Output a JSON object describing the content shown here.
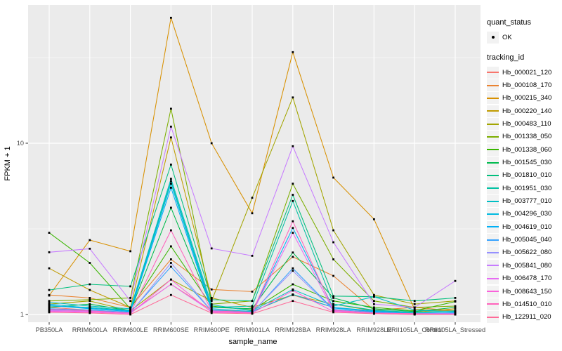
{
  "axes": {
    "x_label": "sample_name",
    "y_label": "FPKM + 1",
    "y_tick_labels": [
      "10",
      "1"
    ]
  },
  "legend": {
    "quant_status": {
      "title": "quant_status",
      "items": [
        {
          "label": "OK",
          "marker": "black-point"
        }
      ]
    },
    "tracking_id": {
      "title": "tracking_id"
    }
  },
  "colors": {
    "panel_background": "#EBEBEB",
    "gridline": "#FFFFFF",
    "marker": "#000000",
    "tick_label": "#4D4D4D",
    "axis_title": "#000000",
    "legend_key_background": "#F2F2F2"
  },
  "chart_data": {
    "type": "line",
    "title": "",
    "xlabel": "sample_name",
    "ylabel": "FPKM + 1",
    "y_scale": "log10",
    "ylim": [
      0.93,
      63
    ],
    "y_major_breaks": [
      1,
      10
    ],
    "y_minor_breaks": [
      3.162,
      31.62
    ],
    "grid": "white-on-gray",
    "legend_position": "right",
    "quant_status": "OK",
    "categories": [
      "PB350LA",
      "RRIM600LA",
      "RRIM600LE",
      "RRIM600SE",
      "RRIM600PE",
      "RRIM901LA",
      "RRIM928BA",
      "RRIM928LA",
      "RRIM928LE",
      "RRII105LA_Control",
      "RRII105LA_Stressed"
    ],
    "series": [
      {
        "name": "Hb_000021_120",
        "color": "#F8766D",
        "values": [
          1.1,
          1.06,
          1.03,
          1.5,
          1.06,
          1.04,
          1.3,
          1.1,
          1.03,
          1.02,
          1.01
        ]
      },
      {
        "name": "Hb_000108_170",
        "color": "#EA8331",
        "values": [
          1.3,
          1.25,
          1.1,
          2.1,
          1.4,
          1.36,
          2.17,
          1.68,
          1.06,
          1.1,
          1.05
        ]
      },
      {
        "name": "Hb_000215_340",
        "color": "#D89000",
        "values": [
          1.29,
          2.72,
          2.34,
          54.0,
          10.0,
          3.9,
          34.0,
          6.3,
          3.6,
          1.07,
          1.05
        ]
      },
      {
        "name": "Hb_000220_140",
        "color": "#C09B00",
        "values": [
          1.86,
          1.39,
          1.1,
          10.8,
          1.25,
          1.1,
          1.3,
          1.15,
          1.05,
          1.03,
          1.08
        ]
      },
      {
        "name": "Hb_000483_110",
        "color": "#A3A500",
        "values": [
          1.15,
          1.2,
          1.05,
          1.6,
          1.2,
          4.8,
          18.5,
          3.1,
          1.3,
          1.15,
          1.2
        ]
      },
      {
        "name": "Hb_001338_050",
        "color": "#7CAE00",
        "values": [
          1.2,
          1.22,
          1.25,
          15.9,
          1.15,
          1.2,
          5.8,
          2.1,
          1.2,
          1.1,
          1.12
        ]
      },
      {
        "name": "Hb_001338_060",
        "color": "#39B600",
        "values": [
          3.0,
          2.0,
          1.08,
          2.5,
          1.12,
          1.06,
          1.5,
          1.2,
          1.1,
          1.05,
          1.19
        ]
      },
      {
        "name": "Hb_001545_030",
        "color": "#00BB4E",
        "values": [
          1.1,
          1.15,
          1.05,
          4.2,
          1.1,
          1.08,
          2.3,
          1.25,
          1.08,
          1.04,
          1.1
        ]
      },
      {
        "name": "Hb_001810_010",
        "color": "#00BF7D",
        "values": [
          1.39,
          1.5,
          1.46,
          7.5,
          1.22,
          1.2,
          5.0,
          1.28,
          1.27,
          1.2,
          1.25
        ]
      },
      {
        "name": "Hb_001951_030",
        "color": "#00C1A3",
        "values": [
          1.12,
          1.1,
          1.06,
          6.0,
          1.1,
          1.12,
          4.6,
          1.15,
          1.06,
          1.03,
          1.05
        ]
      },
      {
        "name": "Hb_003777_010",
        "color": "#00BFC4",
        "values": [
          1.18,
          1.12,
          1.08,
          6.2,
          1.14,
          1.05,
          1.4,
          1.12,
          1.27,
          1.06,
          1.04
        ]
      },
      {
        "name": "Hb_004296_030",
        "color": "#00BAE0",
        "values": [
          1.15,
          1.09,
          1.05,
          5.8,
          1.08,
          1.04,
          1.31,
          1.1,
          1.05,
          1.02,
          1.03
        ]
      },
      {
        "name": "Hb_004619_010",
        "color": "#00B0F6",
        "values": [
          1.13,
          1.08,
          1.04,
          5.5,
          1.06,
          1.03,
          3.2,
          1.09,
          1.04,
          1.01,
          1.02
        ]
      },
      {
        "name": "Hb_005045_040",
        "color": "#35A2FF",
        "values": [
          1.08,
          1.06,
          1.03,
          1.9,
          1.05,
          1.02,
          1.86,
          1.07,
          1.03,
          1.01,
          1.02
        ]
      },
      {
        "name": "Hb_005622_080",
        "color": "#9590FF",
        "values": [
          1.06,
          1.05,
          1.02,
          2.0,
          1.05,
          1.03,
          1.8,
          1.06,
          1.02,
          1.01,
          1.01
        ]
      },
      {
        "name": "Hb_005841_080",
        "color": "#C77CFF",
        "values": [
          2.31,
          2.42,
          1.2,
          12.5,
          2.43,
          2.2,
          9.6,
          2.64,
          1.15,
          1.1,
          1.57
        ]
      },
      {
        "name": "Hb_006478_170",
        "color": "#E76BF3",
        "values": [
          1.05,
          1.04,
          1.02,
          1.5,
          1.04,
          1.02,
          3.0,
          1.05,
          1.02,
          1.01,
          1.01
        ]
      },
      {
        "name": "Hb_008643_150",
        "color": "#FA62DB",
        "values": [
          1.04,
          1.03,
          1.01,
          1.6,
          1.03,
          1.02,
          1.38,
          1.04,
          1.01,
          1.0,
          1.0
        ]
      },
      {
        "name": "Hb_014510_010",
        "color": "#FF62BC",
        "values": [
          1.07,
          1.05,
          1.02,
          3.1,
          1.05,
          1.03,
          3.5,
          1.06,
          1.02,
          1.01,
          1.0
        ]
      },
      {
        "name": "Hb_122911_020",
        "color": "#FF6A98",
        "values": [
          1.03,
          1.02,
          1.0,
          1.3,
          1.02,
          1.01,
          1.2,
          1.03,
          1.01,
          1.0,
          1.0
        ]
      }
    ]
  }
}
